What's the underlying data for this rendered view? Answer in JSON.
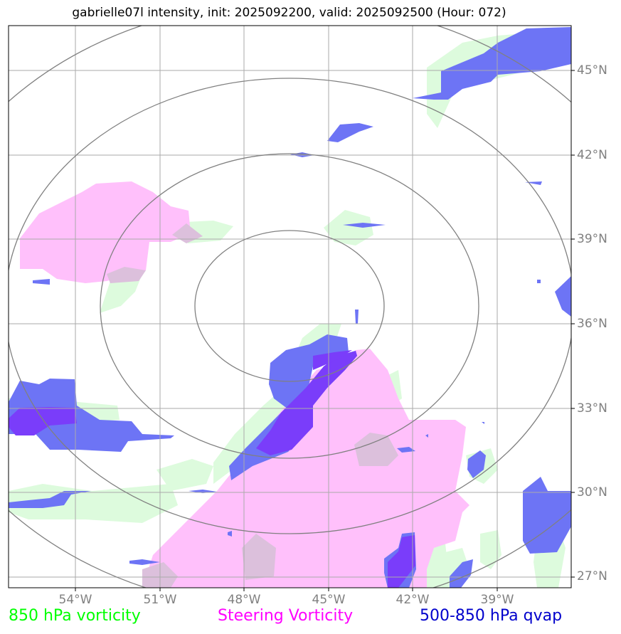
{
  "title": "gabrielle07l intensity, init: 2025092200, valid: 2025092500 (Hour: 072)",
  "lat_labels": [
    "45°N",
    "42°N",
    "39°N",
    "36°N",
    "33°N",
    "30°N",
    "27°N"
  ],
  "lon_labels": [
    "54°W",
    "51°W",
    "48°W",
    "45°W",
    "42°W",
    "39°W"
  ],
  "legend": {
    "green": "850 hPa vorticity",
    "magenta": "Steering Vorticity",
    "blue": "500-850 hPa qvap"
  },
  "colors": {
    "green": "#00ff00",
    "magenta": "#ff00ff",
    "blue": "#0000cc",
    "green_fill": "#ddfbdd",
    "magenta_fill": "#ffc0fb",
    "blue_fill": "#6d74f5",
    "grid": "#aaaaaa",
    "rings": "#808080",
    "label": "#808080"
  }
}
